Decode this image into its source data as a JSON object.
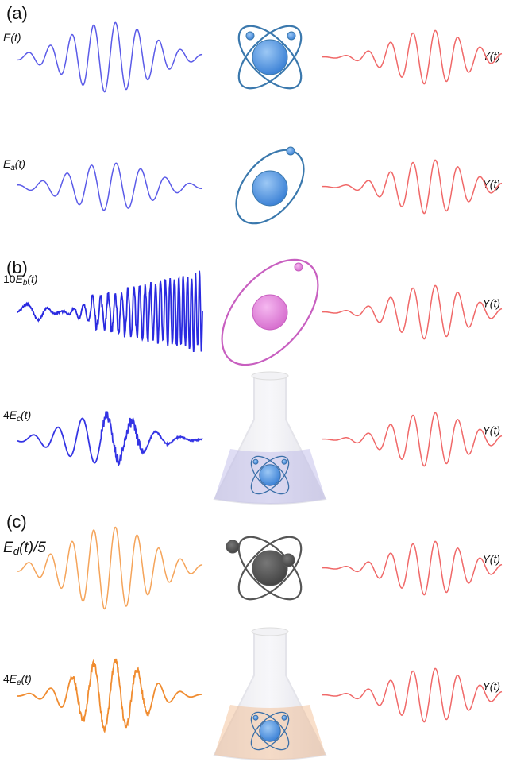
{
  "panels": [
    {
      "label": "(a)",
      "rows": [
        {
          "input": {
            "main": "E",
            "tail": "(t)"
          },
          "output": "Y(t)"
        },
        {
          "input": {
            "main": "E",
            "sub": "a",
            "tail": "(t)"
          },
          "output": "Y(t)"
        }
      ]
    },
    {
      "label": "(b)",
      "rows": [
        {
          "input": {
            "prefix": "10",
            "main": "E",
            "sub": "b",
            "tail": "(t)"
          },
          "output": "Y(t)"
        },
        {
          "input": {
            "prefix": "4",
            "main": "E",
            "sub": "c",
            "tail": "(t)"
          },
          "output": "Y(t)"
        }
      ]
    },
    {
      "label": "(c)",
      "rows": [
        {
          "input": {
            "main": "E",
            "sub": "d",
            "tail": "(t)/5"
          },
          "output": "Y(t)"
        },
        {
          "input": {
            "prefix": "4",
            "main": "E",
            "sub": "e",
            "tail": "(t)"
          },
          "output": "Y(t)"
        }
      ]
    }
  ]
}
